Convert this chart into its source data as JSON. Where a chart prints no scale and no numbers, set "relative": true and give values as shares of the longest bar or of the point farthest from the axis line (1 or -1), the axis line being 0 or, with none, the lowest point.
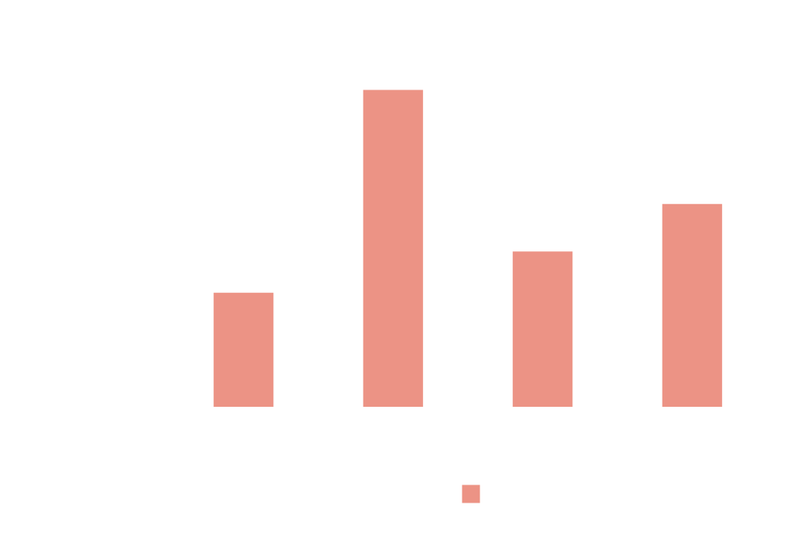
{
  "chart_data": {
    "type": "bar",
    "relative": true,
    "categories": [
      null,
      null,
      null,
      null
    ],
    "series": [
      {
        "color": "#ec9385",
        "values": [
          0.36,
          1,
          0.49,
          0.64
        ]
      }
    ]
  }
}
